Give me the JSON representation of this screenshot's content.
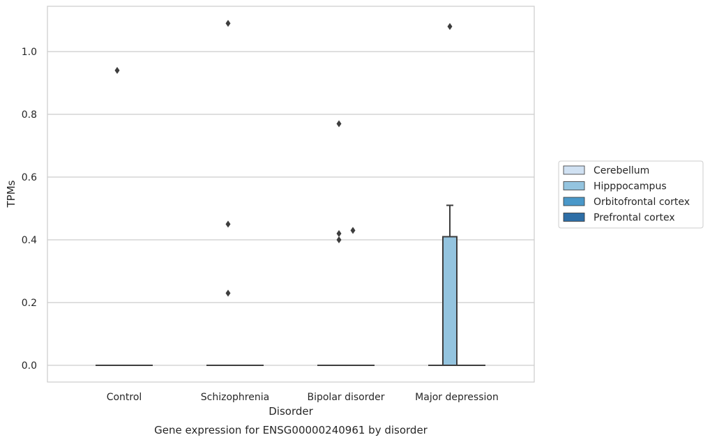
{
  "chart_data": {
    "type": "box",
    "title": "Gene expression for ENSG00000240961 by disorder",
    "xlabel": "Disorder",
    "ylabel": "TPMs",
    "categories": [
      "Control",
      "Schizophrenia",
      "Bipolar disorder",
      "Major depression"
    ],
    "ylim": [
      -0.055,
      1.145
    ],
    "yticks": [
      "0.0",
      "0.2",
      "0.4",
      "0.6",
      "0.8",
      "1.0"
    ],
    "grid": true,
    "legend_position": "right",
    "series": [
      {
        "name": "Cerebellum",
        "color": "#d0e1f2"
      },
      {
        "name": "Hipppocampus",
        "color": "#94c4df"
      },
      {
        "name": "Orbitofrontal cortex",
        "color": "#4a98c9"
      },
      {
        "name": "Prefrontal cortex",
        "color": "#2e6ea6"
      }
    ],
    "boxes": [
      {
        "category": "Control",
        "series": "Cerebellum",
        "q1": 0,
        "median": 0,
        "q3": 0,
        "whisker_low": 0,
        "whisker_high": 0,
        "outliers": []
      },
      {
        "category": "Control",
        "series": "Hipppocampus",
        "q1": 0,
        "median": 0,
        "q3": 0,
        "whisker_low": 0,
        "whisker_high": 0,
        "outliers": [
          0.94
        ]
      },
      {
        "category": "Control",
        "series": "Orbitofrontal cortex",
        "q1": 0,
        "median": 0,
        "q3": 0,
        "whisker_low": 0,
        "whisker_high": 0,
        "outliers": []
      },
      {
        "category": "Control",
        "series": "Prefrontal cortex",
        "q1": 0,
        "median": 0,
        "q3": 0,
        "whisker_low": 0,
        "whisker_high": 0,
        "outliers": []
      },
      {
        "category": "Schizophrenia",
        "series": "Cerebellum",
        "q1": 0,
        "median": 0,
        "q3": 0,
        "whisker_low": 0,
        "whisker_high": 0,
        "outliers": []
      },
      {
        "category": "Schizophrenia",
        "series": "Hipppocampus",
        "q1": 0,
        "median": 0,
        "q3": 0,
        "whisker_low": 0,
        "whisker_high": 0,
        "outliers": [
          1.09,
          0.45,
          0.23
        ]
      },
      {
        "category": "Schizophrenia",
        "series": "Orbitofrontal cortex",
        "q1": 0,
        "median": 0,
        "q3": 0,
        "whisker_low": 0,
        "whisker_high": 0,
        "outliers": []
      },
      {
        "category": "Schizophrenia",
        "series": "Prefrontal cortex",
        "q1": 0,
        "median": 0,
        "q3": 0,
        "whisker_low": 0,
        "whisker_high": 0,
        "outliers": []
      },
      {
        "category": "Bipolar disorder",
        "series": "Cerebellum",
        "q1": 0,
        "median": 0,
        "q3": 0,
        "whisker_low": 0,
        "whisker_high": 0,
        "outliers": []
      },
      {
        "category": "Bipolar disorder",
        "series": "Hipppocampus",
        "q1": 0,
        "median": 0,
        "q3": 0,
        "whisker_low": 0,
        "whisker_high": 0,
        "outliers": [
          0.77,
          0.42,
          0.4
        ]
      },
      {
        "category": "Bipolar disorder",
        "series": "Orbitofrontal cortex",
        "q1": 0,
        "median": 0,
        "q3": 0,
        "whisker_low": 0,
        "whisker_high": 0,
        "outliers": [
          0.43
        ]
      },
      {
        "category": "Bipolar disorder",
        "series": "Prefrontal cortex",
        "q1": 0,
        "median": 0,
        "q3": 0,
        "whisker_low": 0,
        "whisker_high": 0,
        "outliers": []
      },
      {
        "category": "Major depression",
        "series": "Cerebellum",
        "q1": 0,
        "median": 0,
        "q3": 0,
        "whisker_low": 0,
        "whisker_high": 0,
        "outliers": []
      },
      {
        "category": "Major depression",
        "series": "Hipppocampus",
        "q1": 0,
        "median": 0,
        "q3": 0.41,
        "whisker_low": 0,
        "whisker_high": 0.51,
        "outliers": [
          1.08
        ]
      },
      {
        "category": "Major depression",
        "series": "Orbitofrontal cortex",
        "q1": 0,
        "median": 0,
        "q3": 0,
        "whisker_low": 0,
        "whisker_high": 0,
        "outliers": []
      },
      {
        "category": "Major depression",
        "series": "Prefrontal cortex",
        "q1": 0,
        "median": 0,
        "q3": 0,
        "whisker_low": 0,
        "whisker_high": 0,
        "outliers": []
      }
    ]
  }
}
